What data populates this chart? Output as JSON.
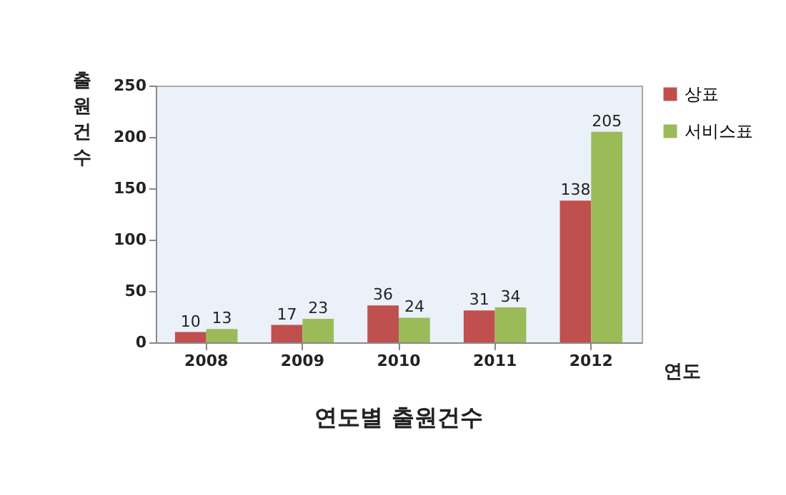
{
  "chart_data": {
    "type": "bar",
    "title": "연도별 출원건수",
    "xlabel": "연도",
    "ylabel": "출원건수",
    "categories": [
      "2008",
      "2009",
      "2010",
      "2011",
      "2012"
    ],
    "series": [
      {
        "name": "상표",
        "color": "#c0504d",
        "values": [
          10,
          17,
          36,
          31,
          138
        ]
      },
      {
        "name": "서비스표",
        "color": "#9bbb59",
        "values": [
          13,
          23,
          24,
          34,
          205
        ]
      }
    ],
    "ylim": [
      0,
      250
    ],
    "yticks": [
      0,
      50,
      100,
      150,
      200,
      250
    ],
    "grid": false,
    "legend": "right",
    "data_labels": true
  }
}
